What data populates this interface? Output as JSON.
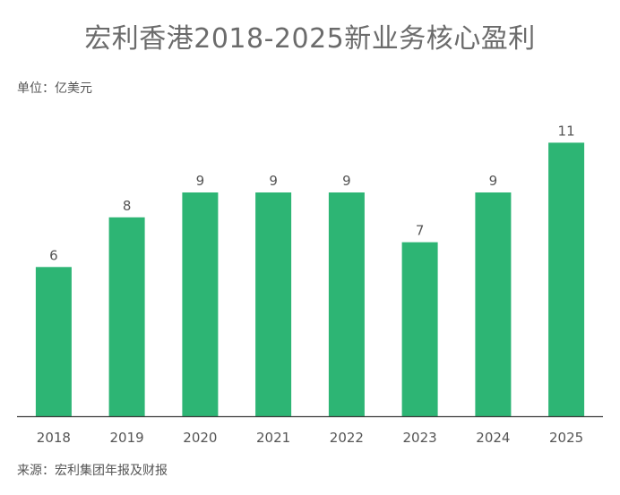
{
  "title": "宏利香港2018-2025新业务核心盈利",
  "unit_label": "单位：亿美元",
  "source_label": "来源：宏利集团年报及财报",
  "colors": {
    "bar": "#2db574",
    "axis": "#3a3a3a",
    "text": "#555555",
    "title": "#6b6b6b"
  },
  "chart_data": {
    "type": "bar",
    "title": "宏利香港2018-2025新业务核心盈利",
    "xlabel": "",
    "ylabel": "",
    "categories": [
      "2018",
      "2019",
      "2020",
      "2021",
      "2022",
      "2023",
      "2024",
      "2025"
    ],
    "values": [
      6,
      8,
      9,
      9,
      9,
      7,
      9,
      11
    ],
    "ylim": [
      0,
      13.5
    ],
    "grid": false,
    "data_labels": true
  }
}
